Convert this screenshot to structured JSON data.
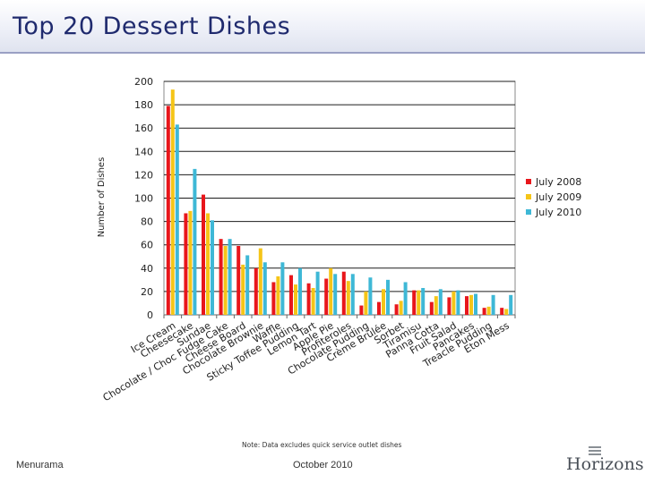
{
  "page": {
    "title": "Top 20 Dessert Dishes",
    "title_color": "#1f2a6e",
    "footer_left": "Menurama",
    "footer_center": "October 2010",
    "logo_text": "Horizons"
  },
  "chart_data": {
    "type": "bar",
    "title": "",
    "xlabel": "",
    "ylabel": "Number of Dishes",
    "ylim": [
      0,
      200
    ],
    "yticks": [
      0,
      20,
      40,
      60,
      80,
      100,
      120,
      140,
      160,
      180,
      200
    ],
    "grid": true,
    "legend_position": "right",
    "note": "Note: Data excludes quick service outlet dishes",
    "categories": [
      "Ice Cream",
      "Cheesecake",
      "Sundae",
      "Chocolate / Choc Fudge Cake",
      "Cheese Board",
      "Chocolate Brownie",
      "Waffle",
      "Sticky Toffee Pudding",
      "Lemon Tart",
      "Apple Pie",
      "Profiteroles",
      "Chocolate Pudding",
      "Crème Brûlée",
      "Sorbet",
      "Tiramisu",
      "Panna Cotta",
      "Fruit Salad",
      "Pancakes",
      "Treacle Pudding",
      "Eton Mess"
    ],
    "series": [
      {
        "name": "July 2008",
        "color": "#e8161b",
        "values": [
          179,
          87,
          103,
          65,
          59,
          40,
          28,
          34,
          27,
          31,
          37,
          8,
          11,
          9,
          21,
          11,
          15,
          16,
          6,
          6
        ]
      },
      {
        "name": "July 2009",
        "color": "#f5c518",
        "values": [
          193,
          89,
          87,
          59,
          43,
          57,
          33,
          26,
          23,
          40,
          29,
          20,
          22,
          12,
          21,
          16,
          20,
          17,
          7,
          5
        ]
      },
      {
        "name": "July 2010",
        "color": "#3eb8d6",
        "values": [
          163,
          125,
          81,
          65,
          51,
          45,
          45,
          40,
          37,
          35,
          35,
          32,
          30,
          28,
          23,
          22,
          21,
          18,
          17,
          17
        ]
      }
    ]
  }
}
